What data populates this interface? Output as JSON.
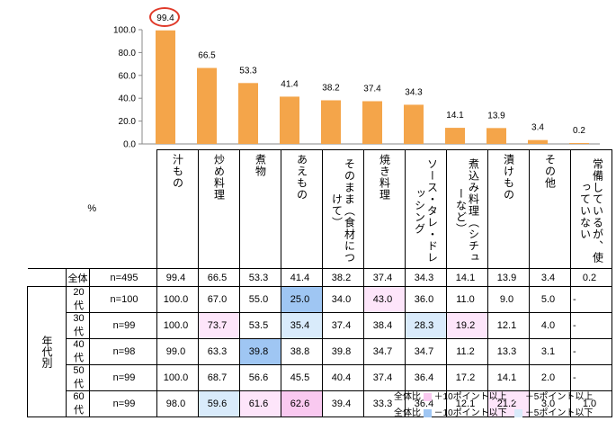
{
  "chart_data": {
    "type": "bar",
    "ylim": [
      0,
      100
    ],
    "yticks": [
      "0.0",
      "20.0",
      "40.0",
      "60.0",
      "80.0",
      "100.0"
    ],
    "grid": false,
    "categories": [
      "汁もの",
      "炒め料理",
      "煮物",
      "あえもの",
      "そのまま（食材につけて）",
      "焼き料理",
      "ソース・タレ・ドレッシング",
      "煮込み料理（シチューなど）",
      "漬けもの",
      "その他",
      "常備しているが、使っていない"
    ],
    "values": [
      99.4,
      66.5,
      53.3,
      41.4,
      38.2,
      37.4,
      34.3,
      14.1,
      13.9,
      3.4,
      0.2
    ],
    "value_labels": [
      "99.4",
      "66.5",
      "53.3",
      "41.4",
      "38.2",
      "37.4",
      "34.3",
      "14.1",
      "13.9",
      "3.4",
      "0.2"
    ],
    "bar_color": "#f4a54a",
    "highlighted_bar": "99.4"
  },
  "table": {
    "unit_label": "%",
    "total_label": "全体",
    "total_n": "n=495",
    "total_values": [
      "99.4",
      "66.5",
      "53.3",
      "41.4",
      "38.2",
      "37.4",
      "34.3",
      "14.1",
      "13.9",
      "3.4",
      "0.2"
    ],
    "group_label": "年代別",
    "rows": [
      {
        "age": "20代",
        "n": "n=100",
        "values": [
          "100.0",
          "67.0",
          "55.0",
          "25.0",
          "34.0",
          "43.0",
          "36.0",
          "11.0",
          "9.0",
          "5.0",
          "-"
        ],
        "highlights": [
          "",
          "",
          "",
          "minus10",
          "",
          "plus5",
          "",
          "",
          "",
          "",
          ""
        ]
      },
      {
        "age": "30代",
        "n": "n=99",
        "values": [
          "100.0",
          "73.7",
          "53.5",
          "35.4",
          "37.4",
          "38.4",
          "28.3",
          "19.2",
          "12.1",
          "4.0",
          "-"
        ],
        "highlights": [
          "",
          "plus5",
          "",
          "minus5",
          "",
          "",
          "minus5",
          "plus5",
          "",
          "",
          ""
        ]
      },
      {
        "age": "40代",
        "n": "n=98",
        "values": [
          "99.0",
          "63.3",
          "39.8",
          "38.8",
          "39.8",
          "34.7",
          "34.7",
          "11.2",
          "13.3",
          "3.1",
          "-"
        ],
        "highlights": [
          "",
          "",
          "minus10",
          "",
          "",
          "",
          "",
          "",
          "",
          "",
          ""
        ]
      },
      {
        "age": "50代",
        "n": "n=99",
        "values": [
          "100.0",
          "68.7",
          "56.6",
          "45.5",
          "40.4",
          "37.4",
          "36.4",
          "17.2",
          "14.1",
          "2.0",
          "-"
        ],
        "highlights": [
          "",
          "",
          "",
          "",
          "",
          "",
          "",
          "",
          "",
          "",
          ""
        ]
      },
      {
        "age": "60代",
        "n": "n=99",
        "values": [
          "98.0",
          "59.6",
          "61.6",
          "62.6",
          "39.4",
          "33.3",
          "36.4",
          "12.1",
          "21.2",
          "3.0",
          "1.0"
        ],
        "highlights": [
          "",
          "minus5",
          "plus5",
          "plus10",
          "",
          "",
          "",
          "",
          "plus5",
          "",
          ""
        ]
      }
    ]
  },
  "legend": {
    "row1_prefix": "全体比",
    "plus10": "＋10ポイント以上",
    "plus5": "＋5ポイント以上",
    "row2_prefix": "全体比",
    "minus10": "－10ポイント以下",
    "minus5": "－5ポイント以下",
    "colors": {
      "plus10": "#f9c9f0",
      "plus5": "#fde5fa",
      "minus10": "#9fc6f3",
      "minus5": "#d9ebfb"
    }
  }
}
